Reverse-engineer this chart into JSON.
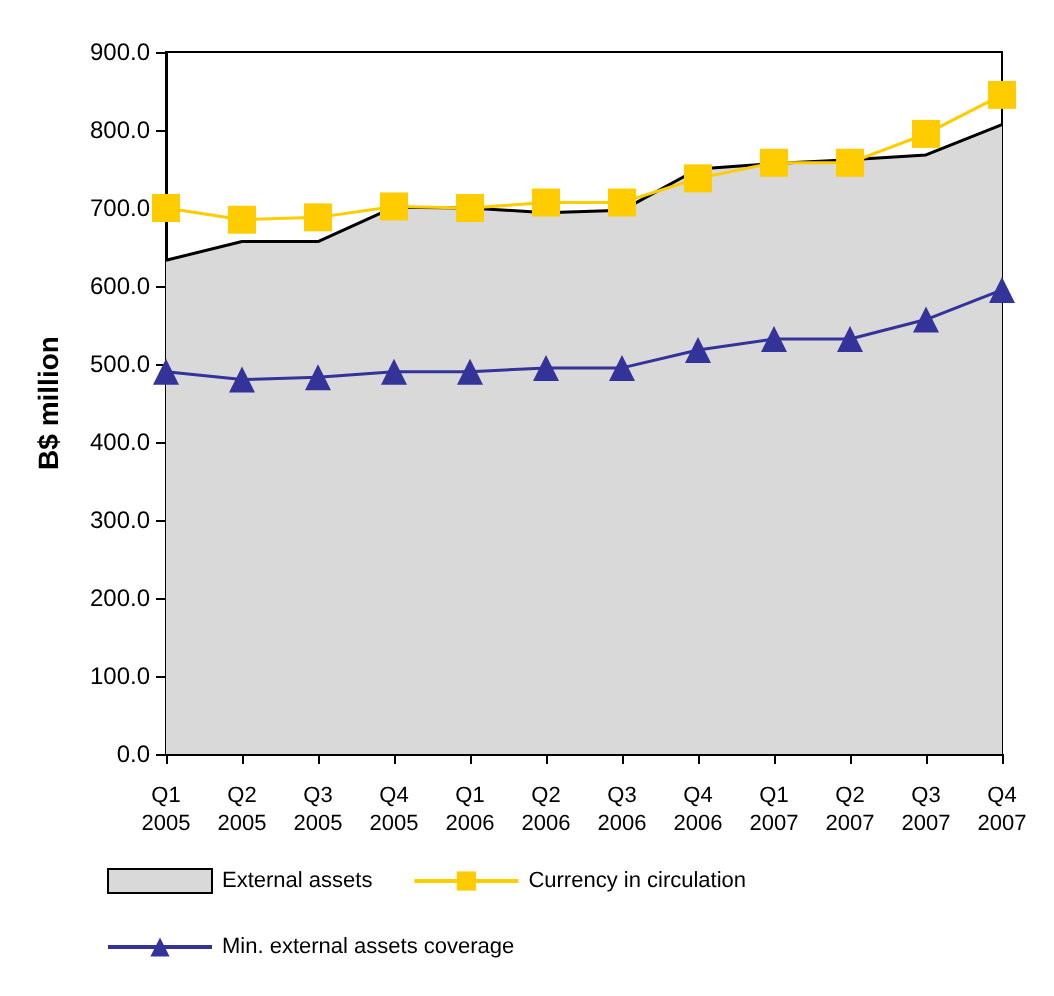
{
  "chart_data": {
    "type": "line",
    "ylabel": "B$ million",
    "categories": [
      "Q1 2005",
      "Q2 2005",
      "Q3 2005",
      "Q4 2005",
      "Q1 2006",
      "Q2 2006",
      "Q3 2006",
      "Q4 2006",
      "Q1 2007",
      "Q2 2007",
      "Q3 2007",
      "Q4 2007"
    ],
    "series": [
      {
        "name": "External assets",
        "type": "area",
        "color": "#d9d9d9",
        "values": [
          633,
          657,
          657,
          701,
          700,
          694,
          697,
          750,
          757,
          762,
          768,
          807
        ]
      },
      {
        "name": "Currency in circulation",
        "type": "line",
        "marker": "square",
        "color": "#ffcc00",
        "values": [
          700,
          685,
          688,
          702,
          700,
          707,
          707,
          738,
          758,
          758,
          795,
          845
        ]
      },
      {
        "name": "Min. external assets coverage",
        "type": "line",
        "marker": "triangle",
        "color": "#333399",
        "values": [
          490,
          480,
          483,
          490,
          490,
          495,
          495,
          518,
          532,
          532,
          557,
          595
        ]
      }
    ],
    "ylim": [
      0,
      900
    ],
    "yticks": [
      {
        "value": 0,
        "label": "0.0"
      },
      {
        "value": 100,
        "label": "100.0"
      },
      {
        "value": 200,
        "label": "200.0"
      },
      {
        "value": 300,
        "label": "300.0"
      },
      {
        "value": 400,
        "label": "400.0"
      },
      {
        "value": 500,
        "label": "500.0"
      },
      {
        "value": 600,
        "label": "600.0"
      },
      {
        "value": 700,
        "label": "700.0"
      },
      {
        "value": 800,
        "label": "800.0"
      },
      {
        "value": 900,
        "label": "900.0"
      }
    ],
    "grid": false,
    "legend": "bottom"
  }
}
